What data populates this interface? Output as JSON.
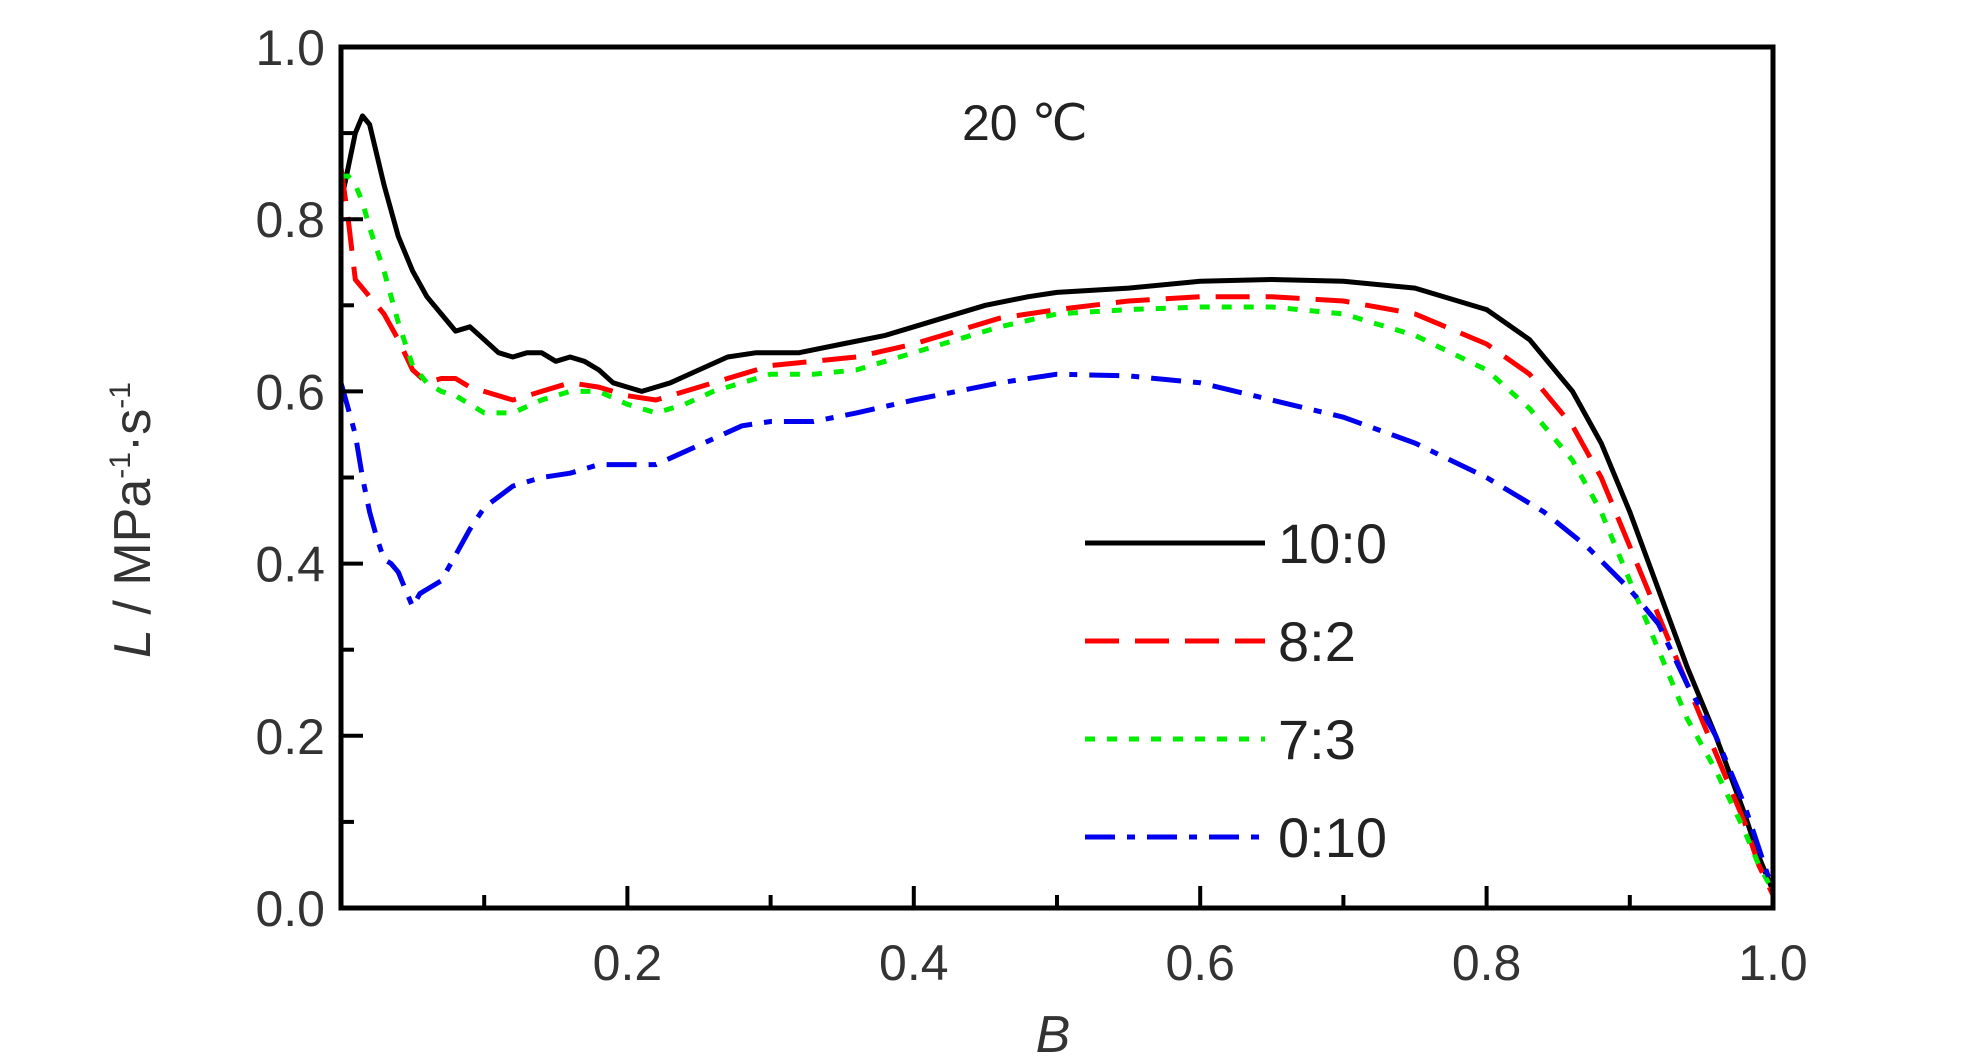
{
  "chart_data": {
    "type": "line",
    "annotation": "20 ℃",
    "xlabel": "B",
    "ylabel": "L / MPa-1·s-1",
    "ylabel_parts": {
      "var": "L",
      "sep": " / ",
      "unit1": "MPa",
      "exp1": "-1",
      "dot": "·",
      "unit2": "s",
      "exp2": "-1"
    },
    "xlim": [
      0,
      1.0
    ],
    "ylim": [
      0,
      1.0
    ],
    "xticks": [
      "0.2",
      "0.4",
      "0.6",
      "0.8",
      "1.0"
    ],
    "yticks": [
      "0.0",
      "0.2",
      "0.4",
      "0.6",
      "0.8",
      "1.0"
    ],
    "grid": false,
    "legend_position": "lower-right",
    "series": [
      {
        "name": "10:0",
        "color": "#000000",
        "dash": "solid",
        "x": [
          0.0,
          0.005,
          0.01,
          0.015,
          0.02,
          0.03,
          0.04,
          0.05,
          0.06,
          0.07,
          0.08,
          0.09,
          0.1,
          0.11,
          0.12,
          0.13,
          0.14,
          0.15,
          0.16,
          0.17,
          0.18,
          0.19,
          0.2,
          0.21,
          0.22,
          0.23,
          0.25,
          0.27,
          0.29,
          0.3,
          0.32,
          0.35,
          0.38,
          0.4,
          0.42,
          0.45,
          0.48,
          0.5,
          0.55,
          0.6,
          0.65,
          0.7,
          0.75,
          0.8,
          0.83,
          0.86,
          0.88,
          0.9,
          0.92,
          0.94,
          0.96,
          0.98,
          0.99,
          1.0
        ],
        "y": [
          0.82,
          0.86,
          0.9,
          0.92,
          0.91,
          0.84,
          0.78,
          0.74,
          0.71,
          0.69,
          0.67,
          0.675,
          0.66,
          0.645,
          0.64,
          0.645,
          0.645,
          0.635,
          0.64,
          0.635,
          0.625,
          0.61,
          0.605,
          0.6,
          0.605,
          0.61,
          0.625,
          0.64,
          0.645,
          0.645,
          0.645,
          0.655,
          0.665,
          0.675,
          0.685,
          0.7,
          0.71,
          0.715,
          0.72,
          0.728,
          0.73,
          0.728,
          0.72,
          0.695,
          0.66,
          0.6,
          0.54,
          0.46,
          0.37,
          0.28,
          0.2,
          0.11,
          0.06,
          0.02
        ]
      },
      {
        "name": "8:2",
        "color": "#ff0000",
        "dash": "dashed",
        "x": [
          0.0,
          0.005,
          0.01,
          0.02,
          0.03,
          0.04,
          0.05,
          0.06,
          0.07,
          0.08,
          0.09,
          0.1,
          0.12,
          0.14,
          0.16,
          0.18,
          0.2,
          0.22,
          0.24,
          0.26,
          0.28,
          0.3,
          0.33,
          0.36,
          0.4,
          0.43,
          0.46,
          0.5,
          0.55,
          0.6,
          0.65,
          0.7,
          0.75,
          0.8,
          0.83,
          0.86,
          0.88,
          0.9,
          0.92,
          0.94,
          0.96,
          0.98,
          0.99,
          1.0
        ],
        "y": [
          0.86,
          0.8,
          0.73,
          0.71,
          0.69,
          0.66,
          0.625,
          0.61,
          0.615,
          0.615,
          0.605,
          0.6,
          0.59,
          0.6,
          0.61,
          0.605,
          0.595,
          0.59,
          0.6,
          0.61,
          0.62,
          0.63,
          0.635,
          0.64,
          0.655,
          0.67,
          0.685,
          0.695,
          0.705,
          0.71,
          0.71,
          0.705,
          0.69,
          0.655,
          0.62,
          0.56,
          0.5,
          0.42,
          0.34,
          0.26,
          0.18,
          0.1,
          0.05,
          0.015
        ]
      },
      {
        "name": "7:3",
        "color": "#00ee00",
        "dash": "dotted",
        "x": [
          0.0,
          0.005,
          0.01,
          0.015,
          0.02,
          0.03,
          0.04,
          0.05,
          0.06,
          0.07,
          0.08,
          0.09,
          0.1,
          0.12,
          0.14,
          0.16,
          0.18,
          0.2,
          0.22,
          0.24,
          0.26,
          0.28,
          0.3,
          0.33,
          0.36,
          0.4,
          0.43,
          0.46,
          0.5,
          0.55,
          0.6,
          0.65,
          0.7,
          0.75,
          0.8,
          0.83,
          0.86,
          0.88,
          0.9,
          0.92,
          0.94,
          0.96,
          0.98,
          0.99,
          1.0
        ],
        "y": [
          0.85,
          0.85,
          0.84,
          0.82,
          0.79,
          0.74,
          0.68,
          0.63,
          0.61,
          0.6,
          0.595,
          0.585,
          0.575,
          0.575,
          0.59,
          0.6,
          0.6,
          0.585,
          0.575,
          0.585,
          0.6,
          0.61,
          0.62,
          0.62,
          0.625,
          0.645,
          0.66,
          0.675,
          0.69,
          0.695,
          0.698,
          0.698,
          0.69,
          0.665,
          0.625,
          0.58,
          0.52,
          0.46,
          0.38,
          0.3,
          0.22,
          0.16,
          0.09,
          0.05,
          0.02
        ]
      },
      {
        "name": "0:10",
        "color": "#0000ee",
        "dash": "dashdot",
        "x": [
          0.0,
          0.005,
          0.01,
          0.015,
          0.02,
          0.025,
          0.03,
          0.035,
          0.04,
          0.045,
          0.05,
          0.055,
          0.06,
          0.07,
          0.08,
          0.09,
          0.1,
          0.12,
          0.14,
          0.16,
          0.18,
          0.2,
          0.22,
          0.24,
          0.26,
          0.28,
          0.3,
          0.33,
          0.36,
          0.4,
          0.43,
          0.46,
          0.5,
          0.55,
          0.6,
          0.65,
          0.7,
          0.75,
          0.8,
          0.84,
          0.87,
          0.9,
          0.92,
          0.94,
          0.96,
          0.98,
          0.99,
          1.0
        ],
        "y": [
          0.61,
          0.58,
          0.55,
          0.5,
          0.46,
          0.43,
          0.405,
          0.4,
          0.39,
          0.37,
          0.35,
          0.365,
          0.37,
          0.38,
          0.41,
          0.44,
          0.465,
          0.49,
          0.5,
          0.505,
          0.515,
          0.515,
          0.515,
          0.53,
          0.545,
          0.56,
          0.565,
          0.565,
          0.575,
          0.59,
          0.6,
          0.61,
          0.62,
          0.618,
          0.61,
          0.59,
          0.57,
          0.54,
          0.5,
          0.46,
          0.42,
          0.37,
          0.33,
          0.26,
          0.2,
          0.12,
          0.07,
          0.02
        ]
      }
    ]
  }
}
